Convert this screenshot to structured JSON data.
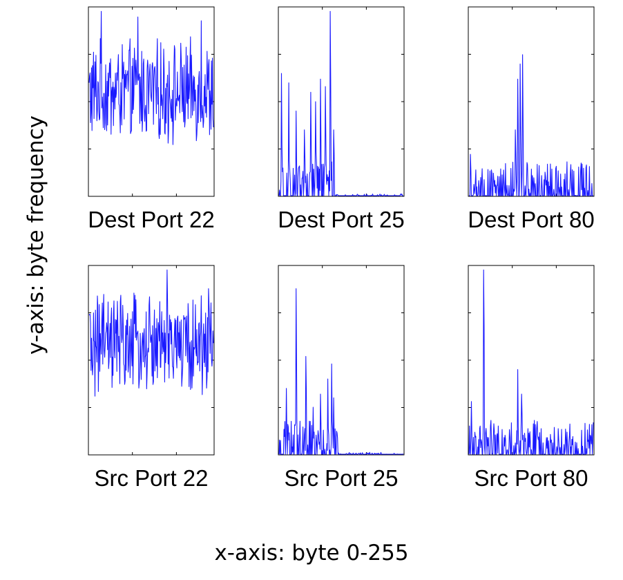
{
  "figure": {
    "ylabel": "y-axis: byte frequency",
    "xlabel": "x-axis: byte 0-255"
  },
  "colors": {
    "line": "#1a1aff",
    "frame": "#000000",
    "background": "#ffffff"
  },
  "chart_data": [
    {
      "type": "line",
      "title": "Dest Port 22",
      "xlim": [
        0,
        255
      ],
      "ylim": [
        0,
        1
      ],
      "grid": false,
      "series": [
        {
          "pattern": "noisy-uniform",
          "x_end": 255,
          "mean": 0.55,
          "amplitude": 0.22,
          "peaks": [
            [
              100,
              0.95
            ],
            [
              25,
              0.98
            ],
            [
              230,
              0.93
            ]
          ],
          "min": 0.12
        }
      ]
    },
    {
      "type": "line",
      "title": "Dest Port 25",
      "xlim": [
        0,
        255
      ],
      "ylim": [
        0,
        1
      ],
      "grid": false,
      "series": [
        {
          "pattern": "sparse-spikes",
          "x_end": 115,
          "peaks": [
            [
              5,
              0.65
            ],
            [
              20,
              0.6
            ],
            [
              35,
              0.45
            ],
            [
              52,
              0.35
            ],
            [
              65,
              0.55
            ],
            [
              75,
              0.5
            ],
            [
              85,
              0.62
            ],
            [
              95,
              0.58
            ],
            [
              105,
              0.98
            ],
            [
              112,
              0.35
            ]
          ],
          "tail_level": 0.01
        }
      ]
    },
    {
      "type": "line",
      "title": "Dest Port 80",
      "xlim": [
        0,
        255
      ],
      "ylim": [
        0,
        1
      ],
      "grid": false,
      "series": [
        {
          "pattern": "sparse-spikes",
          "x_end": 255,
          "peaks": [
            [
              3,
              0.22
            ],
            [
              10,
              0.06
            ],
            [
              20,
              0.08
            ],
            [
              50,
              0.12
            ],
            [
              95,
              0.35
            ],
            [
              100,
              0.62
            ],
            [
              105,
              0.7
            ],
            [
              110,
              0.75
            ]
          ],
          "tail_level": 0.01
        }
      ]
    },
    {
      "type": "line",
      "title": "Src Port 22",
      "xlim": [
        0,
        255
      ],
      "ylim": [
        0,
        1
      ],
      "grid": false,
      "series": [
        {
          "pattern": "noisy-uniform",
          "x_end": 255,
          "mean": 0.58,
          "amplitude": 0.22,
          "peaks": [
            [
              160,
              0.98
            ],
            [
              30,
              0.85
            ],
            [
              245,
              0.88
            ]
          ],
          "min": 0.14
        }
      ]
    },
    {
      "type": "line",
      "title": "Src Port 25",
      "xlim": [
        0,
        255
      ],
      "ylim": [
        0,
        1
      ],
      "grid": false,
      "series": [
        {
          "pattern": "sparse-spikes",
          "x_end": 120,
          "peaks": [
            [
              15,
              0.35
            ],
            [
              35,
              0.88
            ],
            [
              55,
              0.52
            ],
            [
              70,
              0.25
            ],
            [
              85,
              0.32
            ],
            [
              100,
              0.4
            ],
            [
              108,
              0.48
            ],
            [
              112,
              0.3
            ]
          ],
          "tail_level": 0.01
        }
      ]
    },
    {
      "type": "line",
      "title": "Src Port 80",
      "xlim": [
        0,
        255
      ],
      "ylim": [
        0,
        1
      ],
      "grid": false,
      "series": [
        {
          "pattern": "sparse-spikes",
          "x_end": 255,
          "peaks": [
            [
              5,
              0.28
            ],
            [
              30,
              0.98
            ],
            [
              45,
              0.18
            ],
            [
              60,
              0.15
            ],
            [
              100,
              0.45
            ],
            [
              108,
              0.32
            ],
            [
              125,
              0.12
            ],
            [
              180,
              0.04
            ],
            [
              250,
              0.09
            ]
          ],
          "tail_level": 0.03
        }
      ]
    }
  ]
}
